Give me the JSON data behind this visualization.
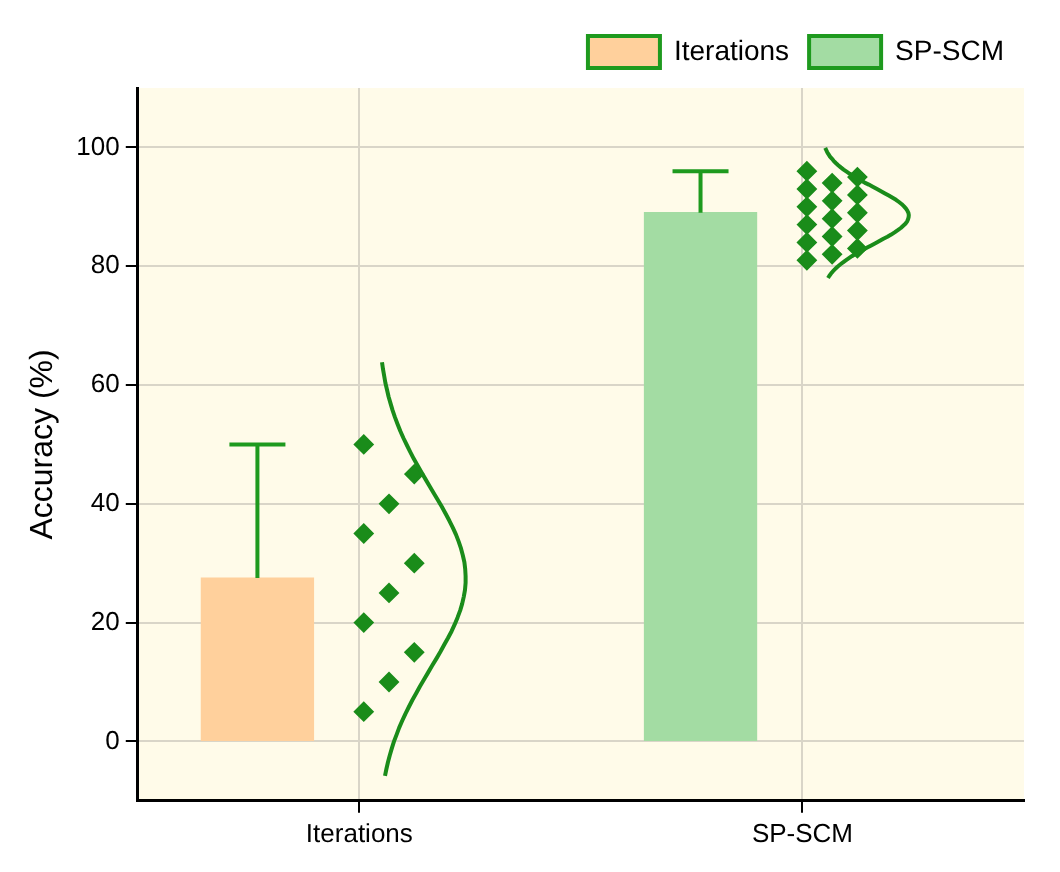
{
  "chart_data": {
    "type": "bar",
    "ylabel": "Accuracy (%)",
    "categories": [
      "Iterations",
      "SP-SCM"
    ],
    "series": [
      {
        "name": "Iterations",
        "color": "#ffd09c",
        "values": [
          27.5,
          null
        ],
        "errors": [
          [
            27.5,
            50
          ],
          null
        ]
      },
      {
        "name": "SP-SCM",
        "color": "#a3dca3",
        "values": [
          null,
          89
        ],
        "errors": [
          null,
          [
            89,
            96
          ]
        ]
      },
      {
        "type": "scatter",
        "color": "#1a8c1a",
        "x": [
          "Iterations",
          "Iterations",
          "Iterations",
          "Iterations",
          "Iterations",
          "Iterations",
          "Iterations",
          "Iterations",
          "Iterations",
          "Iterations"
        ],
        "values": [
          5,
          10,
          15,
          20,
          25,
          30,
          35,
          40,
          45,
          50
        ]
      },
      {
        "type": "scatter",
        "color": "#1a8c1a",
        "x": [
          "SP-SCM",
          "SP-SCM",
          "SP-SCM",
          "SP-SCM",
          "SP-SCM",
          "SP-SCM",
          "SP-SCM",
          "SP-SCM",
          "SP-SCM",
          "SP-SCM",
          "SP-SCM",
          "SP-SCM",
          "SP-SCM",
          "SP-SCM",
          "SP-SCM",
          "SP-SCM"
        ],
        "values": [
          81,
          82,
          83,
          84,
          85,
          86,
          87,
          88,
          89,
          90,
          91,
          92,
          93,
          94,
          95,
          96
        ]
      }
    ],
    "ylim": [
      -10,
      110
    ],
    "yticks": [
      0,
      20,
      40,
      60,
      80,
      100
    ],
    "grid": true,
    "legend": "top right",
    "marker": "diamond"
  }
}
